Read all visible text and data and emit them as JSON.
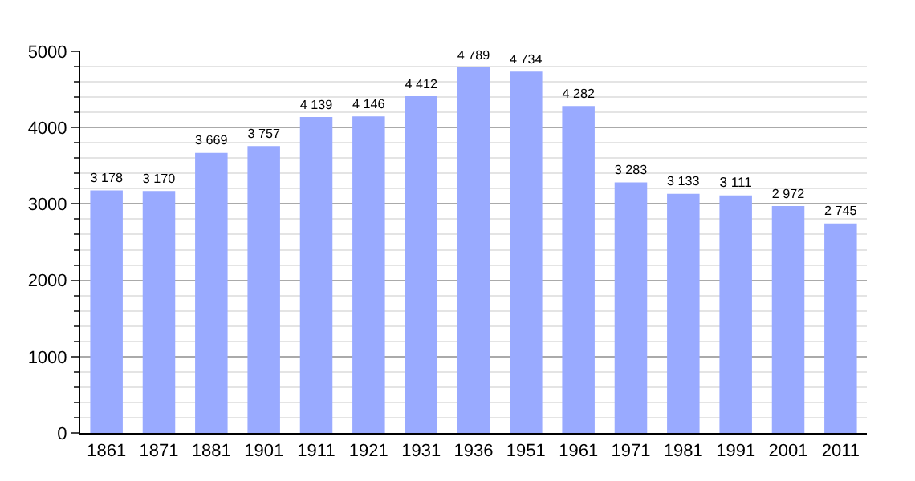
{
  "chart_data": {
    "type": "bar",
    "categories": [
      "1861",
      "1871",
      "1881",
      "1901",
      "1911",
      "1921",
      "1931",
      "1936",
      "1951",
      "1961",
      "1971",
      "1981",
      "1991",
      "2001",
      "2011"
    ],
    "values": [
      3178,
      3170,
      3669,
      3757,
      4139,
      4146,
      4412,
      4789,
      4734,
      4282,
      3283,
      3133,
      3111,
      2972,
      2745
    ],
    "value_labels": [
      "3 178",
      "3 170",
      "3 669",
      "3 757",
      "4 139",
      "4 146",
      "4 412",
      "4 789",
      "4 734",
      "4 282",
      "3 283",
      "3 133",
      "3 111",
      "2 972",
      "2 745"
    ],
    "color": "#99aaff",
    "ylim": [
      0,
      5000
    ],
    "yticks": [
      0,
      {
        "value": 200,
        "label": null
      },
      {
        "value": 400,
        "label": null
      },
      {
        "value": 600,
        "label": null
      },
      {
        "value": 800,
        "label": null
      },
      1000,
      {
        "value": 1200,
        "label": null
      },
      {
        "value": 1400,
        "label": null
      },
      {
        "value": 1600,
        "label": null
      },
      {
        "value": 1800,
        "label": null
      },
      2000,
      {
        "value": 2200,
        "label": null
      },
      {
        "value": 2400,
        "label": null
      },
      {
        "value": 2600,
        "label": null
      },
      {
        "value": 2800,
        "label": null
      },
      3000,
      {
        "value": 3200,
        "label": null
      },
      {
        "value": 3400,
        "label": null
      },
      {
        "value": 3600,
        "label": null
      },
      {
        "value": 3800,
        "label": null
      },
      4000,
      {
        "value": 4200,
        "label": null
      },
      {
        "value": 4400,
        "label": null
      },
      {
        "value": 4600,
        "label": null
      },
      {
        "value": 4800,
        "label": null
      },
      5000
    ],
    "grid": true
  }
}
